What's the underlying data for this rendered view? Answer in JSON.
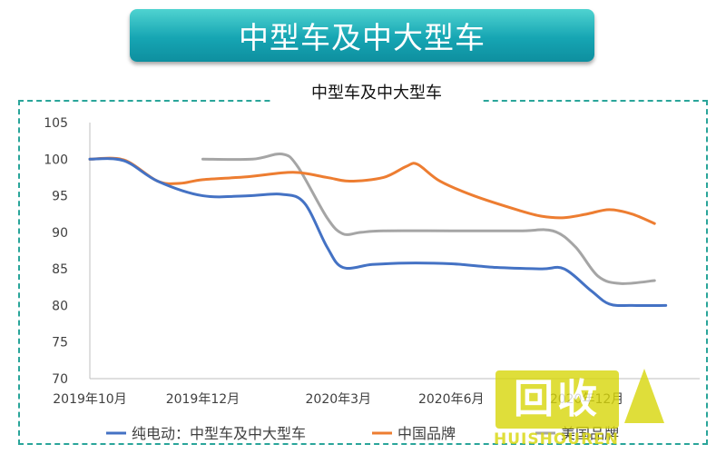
{
  "banner": {
    "title": "中型车及中大型车"
  },
  "chart_data": {
    "type": "line",
    "title": "中型车及中大型车",
    "ylim": [
      70,
      105
    ],
    "yticks": [
      70,
      75,
      80,
      85,
      90,
      95,
      100,
      105
    ],
    "xlim": [
      0,
      27
    ],
    "xticks": [
      {
        "x": 0,
        "label": "2019年10月"
      },
      {
        "x": 5,
        "label": "2019年12月"
      },
      {
        "x": 11,
        "label": "2020年3月"
      },
      {
        "x": 16,
        "label": "2020年6月"
      },
      {
        "x": 22,
        "label": "2020年12月"
      }
    ],
    "grid": false,
    "legend_position": "bottom",
    "series": [
      {
        "name": "纯电动：中型车及中大型车",
        "color": "#4472c4",
        "points": [
          [
            0,
            100
          ],
          [
            1.5,
            99.8
          ],
          [
            3,
            97
          ],
          [
            5,
            95
          ],
          [
            7,
            95
          ],
          [
            8.5,
            95.2
          ],
          [
            9.5,
            94
          ],
          [
            10.5,
            88
          ],
          [
            11.2,
            85.2
          ],
          [
            12.5,
            85.6
          ],
          [
            14,
            85.8
          ],
          [
            16,
            85.7
          ],
          [
            18,
            85.2
          ],
          [
            20,
            85
          ],
          [
            21,
            85
          ],
          [
            22.2,
            82
          ],
          [
            23,
            80.2
          ],
          [
            24,
            80
          ],
          [
            25.5,
            80
          ]
        ]
      },
      {
        "name": "中国品牌",
        "color": "#ed7d31",
        "points": [
          [
            0,
            100
          ],
          [
            1.5,
            99.9
          ],
          [
            3,
            97
          ],
          [
            4,
            96.7
          ],
          [
            5,
            97.2
          ],
          [
            7,
            97.6
          ],
          [
            9,
            98.2
          ],
          [
            10.5,
            97.5
          ],
          [
            11.5,
            97
          ],
          [
            13,
            97.5
          ],
          [
            14,
            99
          ],
          [
            14.5,
            99.3
          ],
          [
            15.5,
            97
          ],
          [
            17,
            95
          ],
          [
            19,
            93
          ],
          [
            20,
            92.2
          ],
          [
            21,
            92
          ],
          [
            22,
            92.5
          ],
          [
            23,
            93.1
          ],
          [
            24,
            92.5
          ],
          [
            25,
            91.2
          ]
        ]
      },
      {
        "name": "美国品牌",
        "color": "#a5a5a5",
        "points": [
          [
            5,
            100
          ],
          [
            7.2,
            100
          ],
          [
            8.5,
            100.7
          ],
          [
            9.2,
            99
          ],
          [
            10.5,
            92
          ],
          [
            11.2,
            89.8
          ],
          [
            12,
            90
          ],
          [
            13,
            90.2
          ],
          [
            16,
            90.2
          ],
          [
            19,
            90.2
          ],
          [
            20.5,
            90.2
          ],
          [
            21.5,
            88
          ],
          [
            22.5,
            84
          ],
          [
            23.5,
            83
          ],
          [
            25,
            83.4
          ]
        ]
      }
    ],
    "legend": [
      "纯电动：中型车及中大型车",
      "中国品牌",
      "美国品牌"
    ]
  },
  "watermark": {
    "main": "回收",
    "sub": "HUISHOUREN"
  }
}
